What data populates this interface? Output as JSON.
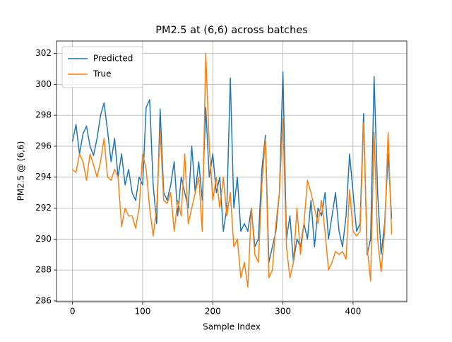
{
  "chart_data": {
    "type": "line",
    "title": "PM2.5 at (6,6) across batches",
    "xlabel": "Sample Index",
    "ylabel": "PM2.5 @ (6,6)",
    "x": [
      0,
      5,
      10,
      15,
      20,
      25,
      30,
      35,
      40,
      45,
      50,
      55,
      60,
      65,
      70,
      75,
      80,
      85,
      90,
      95,
      100,
      105,
      110,
      115,
      120,
      125,
      130,
      135,
      140,
      145,
      150,
      155,
      160,
      165,
      170,
      175,
      180,
      185,
      190,
      195,
      200,
      205,
      210,
      215,
      220,
      225,
      230,
      235,
      240,
      245,
      250,
      255,
      260,
      265,
      270,
      275,
      280,
      285,
      290,
      295,
      300,
      305,
      310,
      315,
      320,
      325,
      330,
      335,
      340,
      345,
      350,
      355,
      360,
      365,
      370,
      375,
      380,
      385,
      390,
      395,
      400,
      405,
      410,
      415,
      420,
      425,
      430,
      435,
      440,
      445,
      450,
      455
    ],
    "series": [
      {
        "name": "Predicted",
        "color": "#1f77b4",
        "values": [
          296.3,
          297.4,
          295.5,
          296.8,
          297.3,
          296,
          295.4,
          296.5,
          298,
          298.8,
          297,
          295,
          296.5,
          294,
          295.5,
          293.5,
          294.5,
          293,
          292.5,
          294,
          293.5,
          298.5,
          299,
          293.5,
          291,
          298.4,
          293,
          292.5,
          293.5,
          295,
          291.5,
          294,
          293,
          292,
          296,
          293,
          295,
          292.5,
          298.5,
          294,
          295.5,
          293,
          294,
          290.5,
          292,
          300.4,
          292,
          294,
          290.5,
          291,
          290.5,
          292,
          289.5,
          290,
          294.5,
          296.7,
          288.5,
          289.5,
          290.5,
          293,
          300.8,
          290,
          291.5,
          288.5,
          290,
          289.5,
          291,
          290,
          292.5,
          289.5,
          292,
          291.5,
          293,
          290,
          291.5,
          293,
          290.5,
          289.5,
          291.5,
          295.5,
          293,
          290.5,
          291,
          298.1,
          289,
          290,
          300.5,
          293,
          289,
          291,
          295.5,
          291.3
        ]
      },
      {
        "name": "True",
        "color": "#ff7f0e",
        "values": [
          294.5,
          294.3,
          295.5,
          295,
          293.8,
          295.5,
          294.8,
          294,
          295,
          296.5,
          294,
          293.8,
          294.5,
          294,
          290.8,
          292,
          291.5,
          291.5,
          290.7,
          292,
          295.5,
          294.5,
          292,
          290.2,
          292,
          297,
          292.5,
          292.3,
          293,
          290.5,
          292.5,
          291.5,
          295.5,
          291,
          292,
          293,
          294,
          290.5,
          302,
          296,
          292.5,
          294,
          292,
          294,
          291.5,
          293,
          289.5,
          290,
          287.5,
          288.5,
          286.9,
          292,
          289,
          288.5,
          293.5,
          296.5,
          287.5,
          288,
          291,
          293,
          297.8,
          289.5,
          287.5,
          288.5,
          292,
          289,
          291,
          293.8,
          293,
          292,
          291,
          292.5,
          290.5,
          288,
          288.5,
          289.2,
          289,
          289.2,
          288.7,
          293.2,
          290.5,
          290.2,
          290.5,
          297.5,
          289.5,
          287.3,
          296.9,
          290,
          287.9,
          290.5,
          296.9,
          290.3
        ]
      }
    ],
    "xlim": [
      -22.8,
      476.6
    ],
    "ylim": [
      285.95,
      302.8
    ],
    "xticks": [
      0,
      100,
      200,
      300,
      400
    ],
    "yticks": [
      286,
      288,
      290,
      292,
      294,
      296,
      298,
      300,
      302
    ],
    "grid": true,
    "legend": "upper left"
  }
}
